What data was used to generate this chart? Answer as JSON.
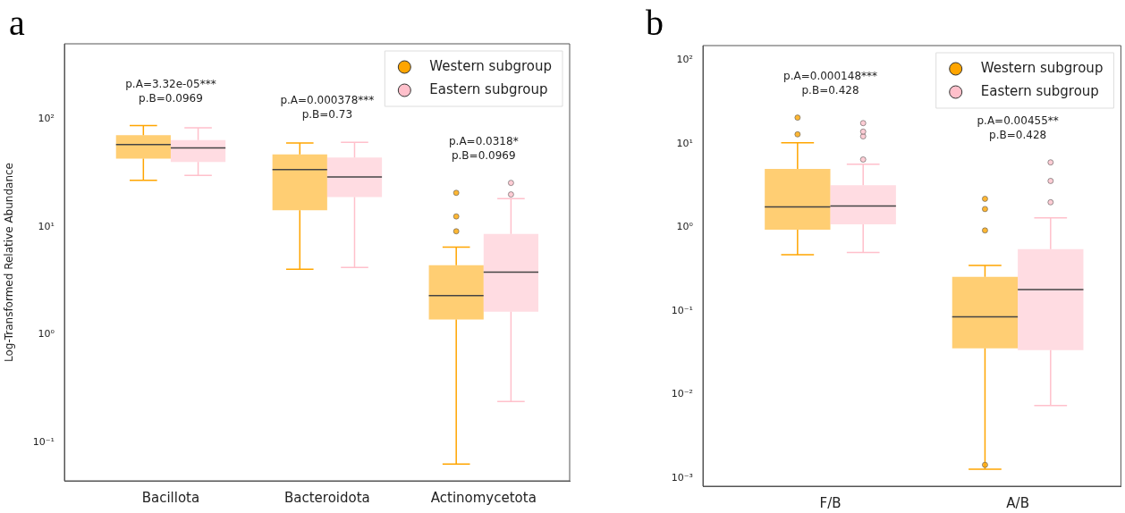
{
  "chart_data": [
    {
      "type": "box",
      "title": "a",
      "ylabel": "Log-Transformed Relative Abundance",
      "categories": [
        "Bacillota",
        "Bacteroidota",
        "Actinomycetota"
      ],
      "log": true,
      "legend": "top right",
      "marker": "circle",
      "ylim": [
        0.044,
        500
      ],
      "yticks": [
        {
          "value": 0.1,
          "label": "10⁻¹"
        },
        {
          "value": 1,
          "label": "10⁰"
        },
        {
          "value": 10,
          "label": "10¹"
        },
        {
          "value": 100,
          "label": "10²"
        }
      ],
      "series": [
        {
          "name": "Western subgroup",
          "color": "#ffa500",
          "boxes": [
            {
              "low": 27,
              "q1": 43,
              "median": 58,
              "q3": 71,
              "high": 87
            },
            {
              "low": 4.05,
              "q1": 14.3,
              "median": 34,
              "q3": 47,
              "high": 60
            },
            {
              "low": 0.063,
              "q1": 1.38,
              "median": 2.3,
              "q3": 4.4,
              "high": 6.5,
              "outliers": [
                9.1,
                12.5,
                20.7
              ]
            }
          ]
        },
        {
          "name": "Eastern subgroup",
          "color": "#ffc0cb",
          "boxes": [
            {
              "low": 30,
              "q1": 40,
              "median": 54,
              "q3": 64,
              "high": 83
            },
            {
              "low": 4.2,
              "q1": 18.9,
              "median": 29,
              "q3": 44,
              "high": 61
            },
            {
              "low": 0.24,
              "q1": 1.63,
              "median": 3.8,
              "q3": 8.6,
              "high": 18.3,
              "outliers": [
                20,
                25.6
              ]
            }
          ]
        }
      ],
      "annotations": [
        "p.A=3.32e-05***\np.B=0.0969",
        "p.A=0.000378***\np.B=0.73",
        "p.A=0.0318*\np.B=0.0969"
      ]
    },
    {
      "type": "box",
      "title": "b",
      "categories": [
        "F/B",
        "A/B"
      ],
      "log": true,
      "legend": "top right",
      "marker": "circle",
      "ylim": [
        0.0008,
        150
      ],
      "yticks": [
        {
          "value": 0.001,
          "label": "10⁻³"
        },
        {
          "value": 0.01,
          "label": "10⁻²"
        },
        {
          "value": 0.1,
          "label": "10⁻¹"
        },
        {
          "value": 1,
          "label": "10⁰"
        },
        {
          "value": 10,
          "label": "10¹"
        },
        {
          "value": 100,
          "label": "10²"
        }
      ],
      "series": [
        {
          "name": "Western subgroup",
          "color": "#ffa500",
          "boxes": [
            {
              "low": 0.47,
              "q1": 0.94,
              "median": 1.76,
              "q3": 5.0,
              "high": 10.3,
              "outliers": [
                13,
                20.6
              ]
            },
            {
              "low": 0.00128,
              "q1": 0.0357,
              "median": 0.085,
              "q3": 0.256,
              "high": 0.35,
              "outliers": [
                0.00144,
                0.92,
                1.66,
                2.2
              ]
            }
          ]
        },
        {
          "name": "Eastern subgroup",
          "color": "#ffc0cb",
          "boxes": [
            {
              "low": 0.5,
              "q1": 1.09,
              "median": 1.8,
              "q3": 3.2,
              "high": 5.7,
              "outliers": [
                6.5,
                12.3,
                14,
                17.7
              ]
            },
            {
              "low": 0.0074,
              "q1": 0.034,
              "median": 0.18,
              "q3": 0.55,
              "high": 1.3,
              "outliers": [
                2.0,
                3.6,
                6.0
              ]
            }
          ]
        }
      ],
      "annotations": [
        "p.A=0.000148***\np.B=0.428",
        "p.A=0.00455**\np.B=0.428"
      ]
    }
  ]
}
